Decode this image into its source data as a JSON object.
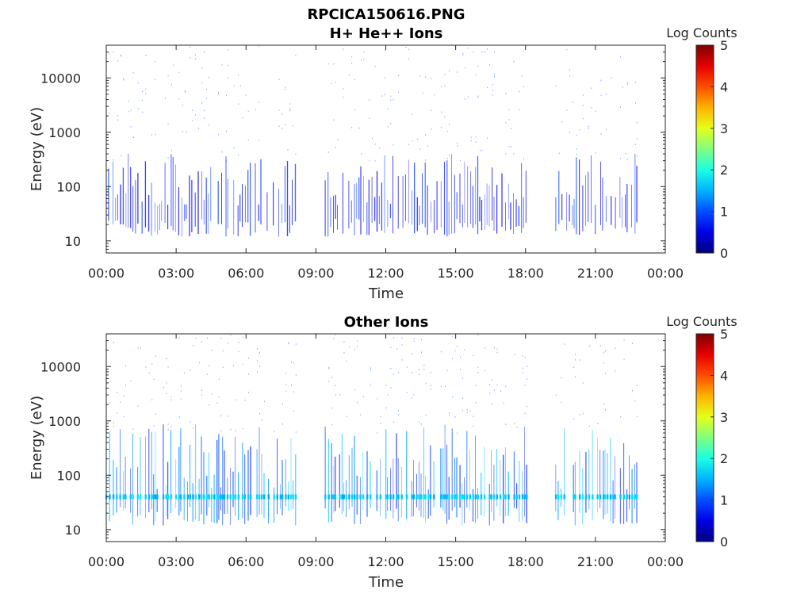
{
  "figure": {
    "title": "RPCICA150616.PNG"
  },
  "chart_data": [
    {
      "type": "heatmap",
      "title": "H+ He++ Ions",
      "xlabel": "Time",
      "ylabel": "Energy (eV)",
      "x_ticks": [
        "00:00",
        "03:00",
        "06:00",
        "09:00",
        "12:00",
        "15:00",
        "18:00",
        "21:00",
        "00:00"
      ],
      "xlim_hours": [
        0,
        24
      ],
      "y_ticks": [
        {
          "value": 10,
          "label": "10"
        },
        {
          "value": 100,
          "label": "100"
        },
        {
          "value": 1000,
          "label": "1000"
        },
        {
          "value": 10000,
          "label": "10000"
        }
      ],
      "ylim": [
        6,
        40000
      ],
      "y_scale": "log",
      "colorbar": {
        "label": "Log Counts",
        "range": [
          0,
          5
        ],
        "ticks": [
          "0",
          "1",
          "2",
          "3",
          "4",
          "5"
        ],
        "colormap": "jet"
      },
      "data_intervals_hours": [
        [
          0.1,
          8.2
        ],
        [
          9.4,
          18.1
        ],
        [
          19.3,
          22.8
        ]
      ],
      "typical_energy_range_eV": [
        15,
        300
      ],
      "typical_level": 0.8
    },
    {
      "type": "heatmap",
      "title": "Other Ions",
      "xlabel": "Time",
      "ylabel": "Energy (eV)",
      "x_ticks": [
        "00:00",
        "03:00",
        "06:00",
        "09:00",
        "12:00",
        "15:00",
        "18:00",
        "21:00",
        "00:00"
      ],
      "xlim_hours": [
        0,
        24
      ],
      "y_ticks": [
        {
          "value": 10,
          "label": "10"
        },
        {
          "value": 100,
          "label": "100"
        },
        {
          "value": 1000,
          "label": "1000"
        },
        {
          "value": 10000,
          "label": "10000"
        }
      ],
      "ylim": [
        6,
        40000
      ],
      "y_scale": "log",
      "colorbar": {
        "label": "Log Counts",
        "range": [
          0,
          5
        ],
        "ticks": [
          "0",
          "1",
          "2",
          "3",
          "4",
          "5"
        ],
        "colormap": "jet"
      },
      "data_intervals_hours": [
        [
          0.0,
          8.2
        ],
        [
          9.4,
          18.1
        ],
        [
          19.3,
          22.8
        ]
      ],
      "typical_energy_range_eV": [
        15,
        600
      ],
      "band_energy_eV": 40,
      "typical_level": 1.4
    }
  ]
}
